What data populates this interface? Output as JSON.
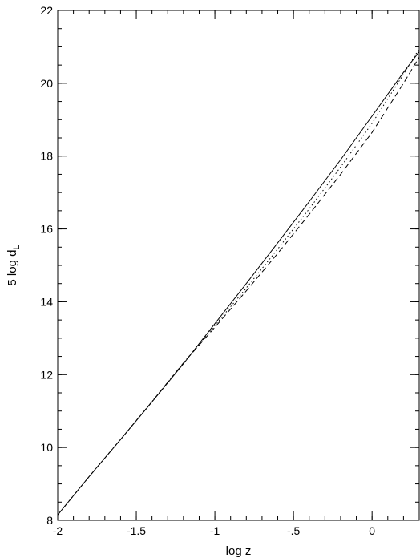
{
  "chart_data": {
    "type": "line",
    "title": "",
    "xlabel": "log z",
    "ylabel_main": "5 log d",
    "ylabel_sub": "L",
    "xlim": [
      -2,
      0.3
    ],
    "ylim": [
      8,
      22
    ],
    "grid": false,
    "x_ticks": [
      -2,
      -1.5,
      -1,
      -0.5,
      0
    ],
    "x_tick_labels": [
      "-2",
      "-1.5",
      "-1",
      "-.5",
      "0"
    ],
    "y_ticks": [
      8,
      10,
      12,
      14,
      16,
      18,
      20,
      22
    ],
    "y_tick_labels": [
      "8",
      "10",
      "12",
      "14",
      "16",
      "18",
      "20",
      "22"
    ],
    "series": [
      {
        "style": "solid",
        "x": [
          -2,
          -1.8,
          -1.6,
          -1.4,
          -1.2,
          -1.0,
          -0.8,
          -0.6,
          -0.4,
          -0.2,
          0.0,
          0.2,
          0.3
        ],
        "y": [
          8.15,
          9.2,
          10.22,
          11.25,
          12.3,
          13.4,
          14.5,
          15.62,
          16.75,
          17.9,
          19.1,
          20.3,
          20.87
        ]
      },
      {
        "style": "dotted",
        "x": [
          -2,
          -1.8,
          -1.6,
          -1.4,
          -1.2,
          -1.0,
          -0.8,
          -0.6,
          -0.4,
          -0.2,
          0.0,
          0.2,
          0.3
        ],
        "y": [
          8.15,
          9.2,
          10.22,
          11.26,
          12.32,
          13.35,
          14.38,
          15.45,
          16.55,
          17.7,
          18.9,
          20.25,
          20.95
        ]
      },
      {
        "style": "dashed",
        "x": [
          -2,
          -1.8,
          -1.6,
          -1.4,
          -1.2,
          -1.0,
          -0.8,
          -0.6,
          -0.4,
          -0.2,
          0.0,
          0.2,
          0.3
        ],
        "y": [
          8.15,
          9.2,
          10.22,
          11.26,
          12.32,
          13.3,
          14.3,
          15.33,
          16.4,
          17.5,
          18.65,
          20.0,
          20.72
        ]
      }
    ]
  }
}
